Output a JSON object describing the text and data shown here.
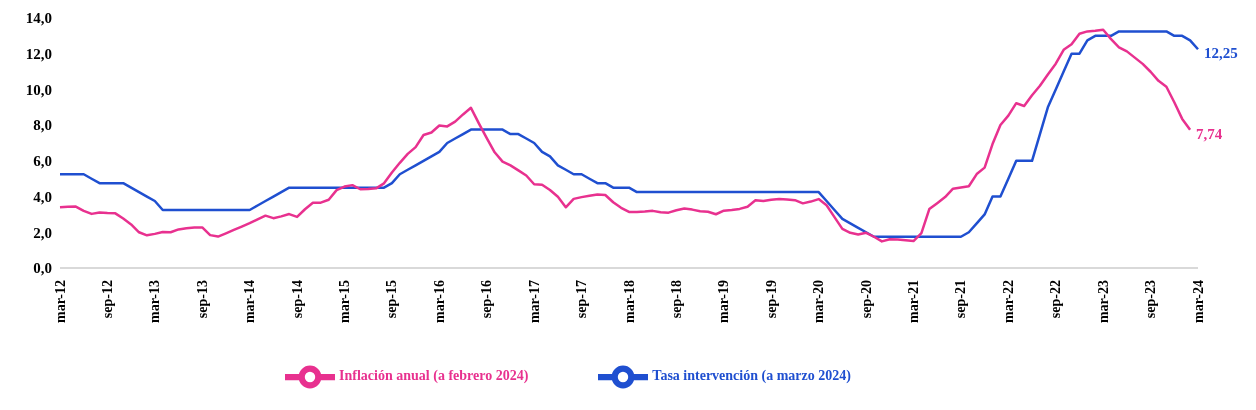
{
  "chart_data": {
    "type": "line",
    "categories": [
      "mar-12",
      null,
      null,
      null,
      null,
      null,
      "sep-12",
      null,
      null,
      null,
      null,
      null,
      "mar-13",
      null,
      null,
      null,
      null,
      null,
      "sep-13",
      null,
      null,
      null,
      null,
      null,
      "mar-14",
      null,
      null,
      null,
      null,
      null,
      "sep-14",
      null,
      null,
      null,
      null,
      null,
      "mar-15",
      null,
      null,
      null,
      null,
      null,
      "sep-15",
      null,
      null,
      null,
      null,
      null,
      "mar-16",
      null,
      null,
      null,
      null,
      null,
      "sep-16",
      null,
      null,
      null,
      null,
      null,
      "mar-17",
      null,
      null,
      null,
      null,
      null,
      "sep-17",
      null,
      null,
      null,
      null,
      null,
      "mar-18",
      null,
      null,
      null,
      null,
      null,
      "sep-18",
      null,
      null,
      null,
      null,
      null,
      "mar-19",
      null,
      null,
      null,
      null,
      null,
      "sep-19",
      null,
      null,
      null,
      null,
      null,
      "mar-20",
      null,
      null,
      null,
      null,
      null,
      "sep-20",
      null,
      null,
      null,
      null,
      null,
      "mar-21",
      null,
      null,
      null,
      null,
      null,
      "sep-21",
      null,
      null,
      null,
      null,
      null,
      "mar-22",
      null,
      null,
      null,
      null,
      null,
      "sep-22",
      null,
      null,
      null,
      null,
      null,
      "mar-23",
      null,
      null,
      null,
      null,
      null,
      "sep-23",
      null,
      null,
      null,
      null,
      null,
      "mar-24"
    ],
    "series": [
      {
        "name": "Tasa intervención (a marzo 2024)",
        "color": "#1f4fd0",
        "values": [
          5.25,
          5.25,
          5.25,
          5.25,
          5,
          4.75,
          4.75,
          4.75,
          4.75,
          4.5,
          4.25,
          4,
          3.75,
          3.25,
          3.25,
          3.25,
          3.25,
          3.25,
          3.25,
          3.25,
          3.25,
          3.25,
          3.25,
          3.25,
          3.25,
          3.5,
          3.75,
          4,
          4.25,
          4.5,
          4.5,
          4.5,
          4.5,
          4.5,
          4.5,
          4.5,
          4.5,
          4.5,
          4.5,
          4.5,
          4.5,
          4.5,
          4.75,
          5.25,
          5.5,
          5.75,
          6,
          6.25,
          6.5,
          7,
          7.25,
          7.5,
          7.75,
          7.75,
          7.75,
          7.75,
          7.75,
          7.5,
          7.5,
          7.25,
          7,
          6.5,
          6.25,
          5.75,
          5.5,
          5.25,
          5.25,
          5,
          4.75,
          4.75,
          4.5,
          4.5,
          4.5,
          4.25,
          4.25,
          4.25,
          4.25,
          4.25,
          4.25,
          4.25,
          4.25,
          4.25,
          4.25,
          4.25,
          4.25,
          4.25,
          4.25,
          4.25,
          4.25,
          4.25,
          4.25,
          4.25,
          4.25,
          4.25,
          4.25,
          4.25,
          4.25,
          3.75,
          3.25,
          2.75,
          2.5,
          2.25,
          2,
          1.75,
          1.75,
          1.75,
          1.75,
          1.75,
          1.75,
          1.75,
          1.75,
          1.75,
          1.75,
          1.75,
          1.75,
          2,
          2.5,
          3,
          4,
          4,
          5,
          6,
          6,
          6,
          7.5,
          9,
          10,
          11,
          12,
          12,
          12.75,
          13,
          13,
          13,
          13.25,
          13.25,
          13.25,
          13.25,
          13.25,
          13.25,
          13.25,
          13,
          13,
          12.75,
          12.25
        ],
        "value_labels": [
          null,
          null,
          null,
          null,
          null,
          null,
          null,
          null,
          null,
          null,
          null,
          null,
          null,
          null,
          null,
          null,
          null,
          null,
          null,
          null,
          null,
          null,
          null,
          null,
          null,
          null,
          null,
          null,
          null,
          null,
          null,
          null,
          null,
          null,
          null,
          null,
          null,
          null,
          null,
          null,
          null,
          null,
          null,
          null,
          null,
          null,
          null,
          null,
          null,
          null,
          null,
          null,
          null,
          null,
          null,
          null,
          null,
          null,
          null,
          null,
          null,
          null,
          null,
          null,
          null,
          null,
          null,
          null,
          null,
          null,
          null,
          null,
          null,
          null,
          null,
          null,
          null,
          null,
          null,
          null,
          null,
          null,
          null,
          null,
          null,
          null,
          null,
          null,
          null,
          null,
          null,
          null,
          null,
          null,
          null,
          null,
          null,
          null,
          null,
          null,
          null,
          null,
          null,
          null,
          null,
          null,
          null,
          null,
          null,
          null,
          null,
          null,
          null,
          null,
          null,
          null,
          null,
          null,
          null,
          null,
          null,
          null,
          null,
          null,
          null,
          null,
          null,
          null,
          null,
          null,
          null,
          null,
          null,
          null,
          null,
          null,
          null,
          null,
          null,
          null,
          null,
          null,
          null,
          null,
          "12,25"
        ]
      },
      {
        "name": "Inflación anual (a febrero 2024)",
        "color": "#e8318f",
        "values": [
          3.4,
          3.43,
          3.44,
          3.2,
          3.03,
          3.11,
          3.08,
          3.06,
          2.77,
          2.44,
          2.0,
          1.83,
          1.91,
          2.02,
          2.0,
          2.16,
          2.22,
          2.27,
          2.27,
          1.84,
          1.76,
          1.94,
          2.13,
          2.32,
          2.51,
          2.72,
          2.93,
          2.79,
          2.89,
          3.02,
          2.86,
          3.29,
          3.65,
          3.66,
          3.82,
          4.36,
          4.56,
          4.64,
          4.41,
          4.42,
          4.46,
          4.74,
          5.35,
          5.89,
          6.39,
          6.77,
          7.45,
          7.59,
          7.98,
          7.93,
          8.2,
          8.6,
          8.97,
          8.1,
          7.27,
          6.48,
          5.96,
          5.75,
          5.47,
          5.18,
          4.69,
          4.66,
          4.37,
          3.99,
          3.4,
          3.87,
          3.97,
          4.05,
          4.12,
          4.09,
          3.68,
          3.37,
          3.14,
          3.13,
          3.16,
          3.2,
          3.12,
          3.1,
          3.23,
          3.33,
          3.27,
          3.18,
          3.15,
          3.01,
          3.21,
          3.25,
          3.31,
          3.43,
          3.79,
          3.75,
          3.82,
          3.86,
          3.84,
          3.8,
          3.62,
          3.72,
          3.86,
          3.51,
          2.85,
          2.19,
          1.97,
          1.88,
          1.97,
          1.75,
          1.49,
          1.61,
          1.6,
          1.56,
          1.51,
          1.95,
          3.3,
          3.63,
          3.97,
          4.44,
          4.51,
          4.58,
          5.26,
          5.62,
          6.94,
          8.01,
          8.53,
          9.23,
          9.07,
          9.67,
          10.21,
          10.84,
          11.44,
          12.22,
          12.53,
          13.12,
          13.25,
          13.28,
          13.34,
          12.82,
          12.36,
          12.13,
          11.78,
          11.43,
          10.99,
          10.48,
          10.15,
          9.28,
          8.35,
          7.74,
          null
        ],
        "value_labels": [
          null,
          null,
          null,
          null,
          null,
          null,
          null,
          null,
          null,
          null,
          null,
          null,
          null,
          null,
          null,
          null,
          null,
          null,
          null,
          null,
          null,
          null,
          null,
          null,
          null,
          null,
          null,
          null,
          null,
          null,
          null,
          null,
          null,
          null,
          null,
          null,
          null,
          null,
          null,
          null,
          null,
          null,
          null,
          null,
          null,
          null,
          null,
          null,
          null,
          null,
          null,
          null,
          null,
          null,
          null,
          null,
          null,
          null,
          null,
          null,
          null,
          null,
          null,
          null,
          null,
          null,
          null,
          null,
          null,
          null,
          null,
          null,
          null,
          null,
          null,
          null,
          null,
          null,
          null,
          null,
          null,
          null,
          null,
          null,
          null,
          null,
          null,
          null,
          null,
          null,
          null,
          null,
          null,
          null,
          null,
          null,
          null,
          null,
          null,
          null,
          null,
          null,
          null,
          null,
          null,
          null,
          null,
          null,
          null,
          null,
          null,
          null,
          null,
          null,
          null,
          null,
          null,
          null,
          null,
          null,
          null,
          null,
          null,
          null,
          null,
          null,
          null,
          null,
          null,
          null,
          null,
          null,
          null,
          null,
          null,
          null,
          null,
          null,
          null,
          null,
          null,
          null,
          null,
          "7,74",
          null
        ]
      }
    ],
    "ylim": [
      0,
      14
    ],
    "yticks": [
      {
        "value": 0,
        "label": "0,0"
      },
      {
        "value": 2,
        "label": "2,0"
      },
      {
        "value": 4,
        "label": "4,0"
      },
      {
        "value": 6,
        "label": "6,0"
      },
      {
        "value": 8,
        "label": "8,0"
      },
      {
        "value": 10,
        "label": "10,0"
      },
      {
        "value": 12,
        "label": "12,0"
      },
      {
        "value": 14,
        "label": "14,0"
      }
    ],
    "legend": "bottom"
  }
}
